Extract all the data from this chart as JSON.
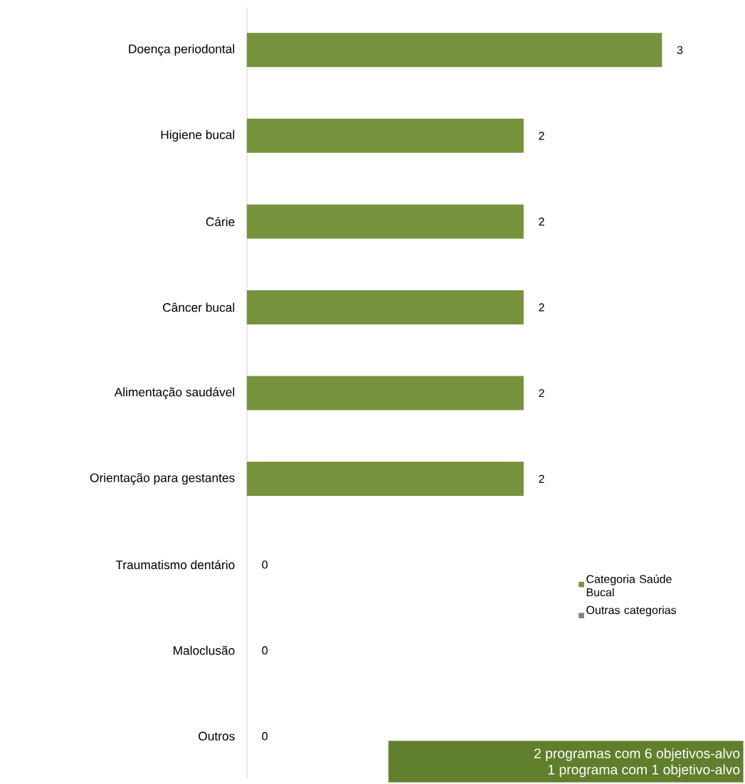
{
  "chart_data": {
    "type": "bar",
    "orientation": "horizontal",
    "categories": [
      "Doença periodontal",
      "Higiene bucal",
      "Cárie",
      "Câncer bucal",
      "Alimentação saudável",
      "Orientação para gestantes",
      "Traumatismo dentário",
      "Maloclusão",
      "Outros"
    ],
    "series": [
      {
        "name": "Categoria Saúde Bucal",
        "color": "#76923c",
        "values": [
          3,
          2,
          2,
          2,
          2,
          2,
          0,
          0,
          0
        ]
      },
      {
        "name": "Outras categorias",
        "color": "#7f7f7f",
        "values": [
          null,
          null,
          null,
          null,
          null,
          null,
          null,
          null,
          null
        ]
      }
    ],
    "data_labels": true,
    "legend": "right",
    "annotations": [
      "2 programas com 6 objetivos-alvo",
      "1 programa com 1 objetivo-alvo"
    ]
  }
}
